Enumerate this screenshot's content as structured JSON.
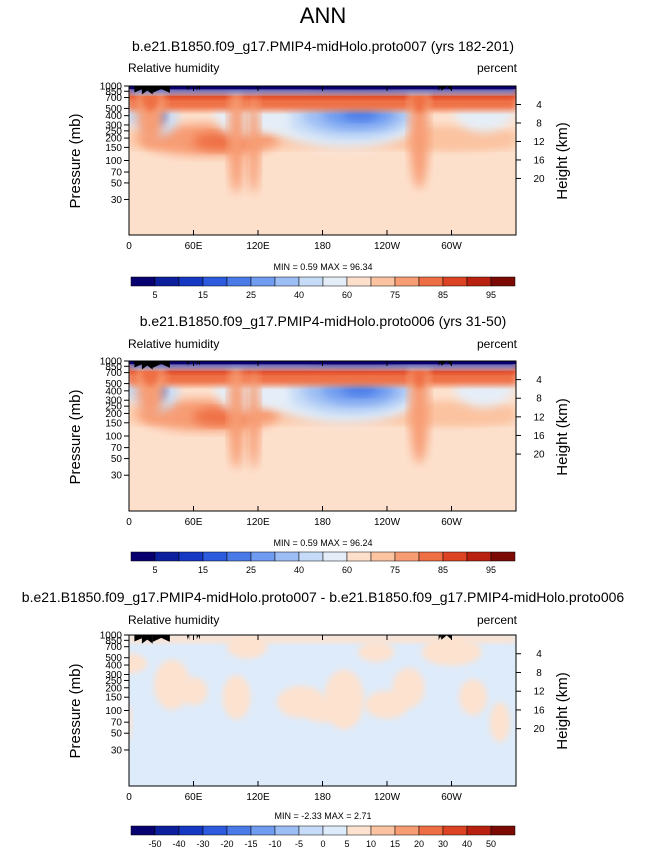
{
  "chart_data": {
    "type": "heatmap",
    "title": "ANN",
    "panels": [
      {
        "title": "b.e21.B1850.f09_g17.PMIP4-midHolo.proto007 (yrs 182-201)",
        "left_label": "Relative humidity",
        "right_label": "percent",
        "ylabel": "Pressure (mb)",
        "y2label": "Height (km)",
        "stats": "MIN =   0.59  MAX =  96.34",
        "kind": "abs",
        "min": 0.59,
        "max": 96.34
      },
      {
        "title": "b.e21.B1850.f09_g17.PMIP4-midHolo.proto006 (yrs 31-50)",
        "left_label": "Relative humidity",
        "right_label": "percent",
        "ylabel": "Pressure (mb)",
        "y2label": "Height (km)",
        "stats": "MIN =   0.59  MAX =  96.24",
        "kind": "abs",
        "min": 0.59,
        "max": 96.24
      },
      {
        "title": "b.e21.B1850.f09_g17.PMIP4-midHolo.proto007 - b.e21.B1850.f09_g17.PMIP4-midHolo.proto006",
        "left_label": "Relative humidity",
        "right_label": "percent",
        "ylabel": "Pressure (mb)",
        "y2label": "Height (km)",
        "stats": "MIN =  -2.33  MAX =   2.71",
        "kind": "diff",
        "min": -2.33,
        "max": 2.71
      }
    ],
    "x_ticks": [
      "0",
      "60E",
      "120E",
      "180",
      "120W",
      "60W"
    ],
    "x_values": [
      0,
      60,
      120,
      180,
      240,
      300
    ],
    "x_range": [
      0,
      360
    ],
    "pressure_ticks": [
      "1000",
      "850",
      "700",
      "500",
      "400",
      "300",
      "250",
      "200",
      "150",
      "100",
      "70",
      "50",
      "30"
    ],
    "pressure_values": [
      1000,
      850,
      700,
      500,
      400,
      300,
      250,
      200,
      150,
      100,
      70,
      50,
      30
    ],
    "height_ticks": [
      "4",
      "8",
      "12",
      "16",
      "20"
    ],
    "height_values": [
      4,
      8,
      12,
      16,
      20
    ],
    "colorbar_abs": {
      "labels": [
        "5",
        "15",
        "25",
        "40",
        "60",
        "75",
        "85",
        "95"
      ],
      "levels": [
        5,
        10,
        15,
        20,
        25,
        30,
        40,
        50,
        60,
        70,
        75,
        80,
        85,
        90,
        95
      ],
      "colors": [
        "#08006e",
        "#0c1f9c",
        "#1639c4",
        "#2c5bdd",
        "#4a7ae8",
        "#6f9bf0",
        "#9dbef4",
        "#c6dbf7",
        "#e5eef8",
        "#fde0cc",
        "#fbc3a0",
        "#f79d74",
        "#ef6f45",
        "#dc4322",
        "#b8200f",
        "#7b0a05"
      ]
    },
    "colorbar_diff": {
      "labels": [
        "-50",
        "-40",
        "-30",
        "-20",
        "-15",
        "-10",
        "-5",
        "0",
        "5",
        "10",
        "15",
        "20",
        "30",
        "40",
        "50"
      ],
      "colors": [
        "#08006e",
        "#0c1f9c",
        "#1639c4",
        "#2c5bdd",
        "#4a7ae8",
        "#6f9bf0",
        "#9dbef4",
        "#c6dbf7",
        "#deebfa",
        "#fde2cf",
        "#fbc3a0",
        "#f79d74",
        "#ef6f45",
        "#dc4322",
        "#b8200f",
        "#7b0a05"
      ]
    }
  }
}
